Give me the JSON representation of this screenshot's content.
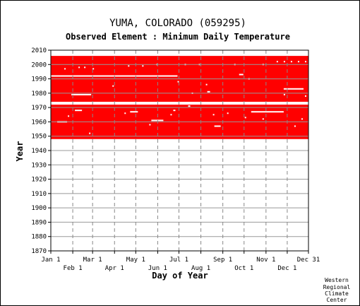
{
  "chart_data": {
    "type": "heatmap",
    "title": "YUMA, COLORADO   (059295)",
    "subtitle": "Observed Element : Minimum Daily Temperature",
    "xlabel": "Day of Year",
    "ylabel": "Year",
    "ylim": [
      1870,
      2010
    ],
    "x_ticks_top": [
      "Jan 1",
      "Mar 1",
      "May 1",
      "Jul 1",
      "Sep 1",
      "Nov 1",
      "Dec 31"
    ],
    "x_ticks_bottom": [
      "Feb 1",
      "Apr 1",
      "Jun 1",
      "Aug 1",
      "Oct 1",
      "Dec 1"
    ],
    "y_ticks": [
      2010,
      2000,
      1990,
      1980,
      1970,
      1960,
      1950,
      1940,
      1930,
      1920,
      1910,
      1900,
      1890,
      1880,
      1870
    ],
    "grid": true,
    "fill_color": "#ff0000",
    "data_coverage": {
      "description_note": "",
      "blocks": [
        {
          "start_day": 1,
          "end_day": 365,
          "start_year": 1948,
          "end_year": 1972
        },
        {
          "start_day": 1,
          "end_day": 365,
          "start_year": 1974,
          "end_year": 2005
        }
      ],
      "gaps": [
        {
          "start_day": 1,
          "end_day": 365,
          "year": 1972.5
        },
        {
          "start_day": 1,
          "end_day": 180,
          "year": 1992
        },
        {
          "start_day": 30,
          "end_day": 58,
          "year": 1979
        },
        {
          "start_day": 330,
          "end_day": 358,
          "year": 1983
        },
        {
          "start_day": 10,
          "end_day": 24,
          "year": 1960
        },
        {
          "start_day": 35,
          "end_day": 45,
          "year": 1968
        },
        {
          "start_day": 143,
          "end_day": 160,
          "year": 1961
        },
        {
          "start_day": 113,
          "end_day": 124,
          "year": 1967
        },
        {
          "start_day": 232,
          "end_day": 241,
          "year": 1957
        },
        {
          "start_day": 267,
          "end_day": 273,
          "year": 1993
        },
        {
          "start_day": 195,
          "end_day": 198,
          "year": 1971
        },
        {
          "start_day": 284,
          "end_day": 330,
          "year": 1967
        },
        {
          "start_day": 222,
          "end_day": 226,
          "year": 1981
        },
        {
          "start_day": 174,
          "end_day": 177,
          "year": 1968
        }
      ]
    }
  },
  "credit": {
    "line1": "Western",
    "line2": "Regional",
    "line3": "Climate",
    "line4": "Center"
  }
}
